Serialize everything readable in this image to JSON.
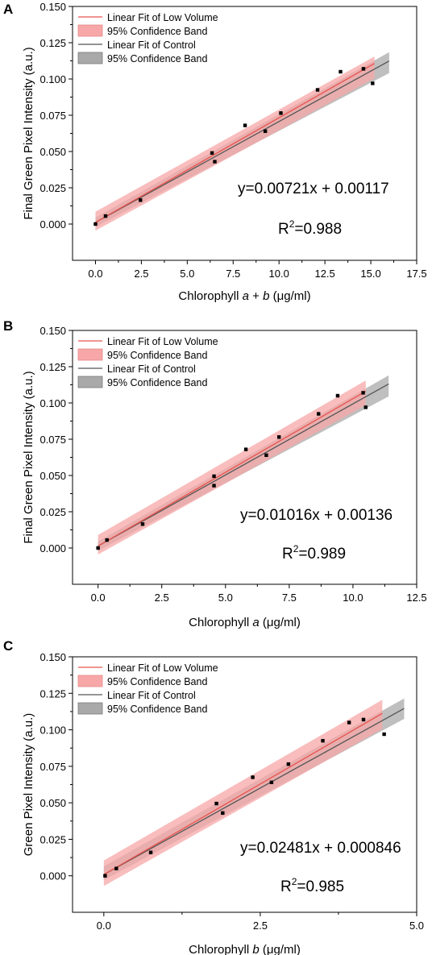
{
  "chart_data": [
    {
      "type": "scatter",
      "panel_label": "A",
      "xlabel_parts": [
        "Chlorophyll ",
        "a",
        " + ",
        "b",
        " (μg/ml)"
      ],
      "ylabel": "Final Green Pixel Intensity (a.u.)",
      "xlim": [
        -1.25,
        17.5
      ],
      "ylim": [
        -0.025,
        0.15
      ],
      "xticks": [
        "0.0",
        "2.5",
        "5.0",
        "7.5",
        "10.0",
        "12.5",
        "15.0",
        "17.5"
      ],
      "xtick_values": [
        0,
        2.5,
        5,
        7.5,
        10,
        12.5,
        15,
        17.5
      ],
      "yticks": [
        "0.000",
        "0.025",
        "0.050",
        "0.075",
        "0.100",
        "0.125",
        "0.150"
      ],
      "ytick_values": [
        0,
        0.025,
        0.05,
        0.075,
        0.1,
        0.125,
        0.15
      ],
      "legend": [
        "Linear Fit of Low Volume",
        "95% Confidence Band",
        "Linear Fit of Control",
        "95% Confidence Band"
      ],
      "equation": "y=0.00721x + 0.00117",
      "r2_prefix": "R",
      "r2_sup": "2",
      "r2_value": "=0.988",
      "points": [
        {
          "x": 0.0,
          "y": 0.0
        },
        {
          "x": 0.55,
          "y": 0.0055
        },
        {
          "x": 2.45,
          "y": 0.0165
        },
        {
          "x": 6.35,
          "y": 0.049
        },
        {
          "x": 6.5,
          "y": 0.043
        },
        {
          "x": 8.15,
          "y": 0.068
        },
        {
          "x": 9.25,
          "y": 0.064
        },
        {
          "x": 10.1,
          "y": 0.0765
        },
        {
          "x": 12.1,
          "y": 0.0925
        },
        {
          "x": 13.35,
          "y": 0.105
        },
        {
          "x": 14.6,
          "y": 0.107
        },
        {
          "x": 15.1,
          "y": 0.097
        }
      ],
      "low_volume_fit": {
        "slope": 0.00721,
        "intercept": 0.00117,
        "x_range": [
          0,
          15.2
        ]
      },
      "control_fit": {
        "slope": 0.00695,
        "intercept": 0.00117,
        "x_range": [
          0,
          16.0
        ]
      },
      "low_volume_band": {
        "x": [
          0,
          15.2
        ],
        "lower": [
          -0.0045,
          0.1005
        ],
        "upper": [
          0.0085,
          0.1155
        ]
      },
      "control_band": {
        "x": [
          0,
          16.0
        ],
        "lower": [
          -0.002,
          0.104
        ],
        "upper": [
          0.0045,
          0.1185
        ]
      }
    },
    {
      "type": "scatter",
      "panel_label": "B",
      "xlabel_parts": [
        "Chlorophyll ",
        "a",
        " (μg/ml)"
      ],
      "ylabel": "Final Green Pixel Intensity (a.u.)",
      "xlim": [
        -1.0,
        12.5
      ],
      "ylim": [
        -0.025,
        0.15
      ],
      "xticks": [
        "0.0",
        "2.5",
        "5.0",
        "7.5",
        "10.0",
        "12.5"
      ],
      "xtick_values": [
        0,
        2.5,
        5,
        7.5,
        10,
        12.5
      ],
      "yticks": [
        "0.000",
        "0.025",
        "0.050",
        "0.075",
        "0.100",
        "0.125",
        "0.150"
      ],
      "ytick_values": [
        0,
        0.025,
        0.05,
        0.075,
        0.1,
        0.125,
        0.15
      ],
      "legend": [
        "Linear Fit of Low Volume",
        "95% Confidence Band",
        "Linear Fit of Control",
        "95% Confidence Band"
      ],
      "equation": "y=0.01016x + 0.00136",
      "r2_prefix": "R",
      "r2_sup": "2",
      "r2_value": "=0.989",
      "points": [
        {
          "x": 0.0,
          "y": 0.0
        },
        {
          "x": 0.35,
          "y": 0.0055
        },
        {
          "x": 1.75,
          "y": 0.0165
        },
        {
          "x": 4.55,
          "y": 0.0495
        },
        {
          "x": 4.55,
          "y": 0.043
        },
        {
          "x": 5.8,
          "y": 0.068
        },
        {
          "x": 6.6,
          "y": 0.064
        },
        {
          "x": 7.1,
          "y": 0.0765
        },
        {
          "x": 8.65,
          "y": 0.0925
        },
        {
          "x": 9.4,
          "y": 0.105
        },
        {
          "x": 10.4,
          "y": 0.107
        },
        {
          "x": 10.5,
          "y": 0.097
        }
      ],
      "low_volume_fit": {
        "slope": 0.01016,
        "intercept": 0.00136,
        "x_range": [
          0,
          10.5
        ]
      },
      "control_fit": {
        "slope": 0.0098,
        "intercept": 0.00136,
        "x_range": [
          0,
          11.4
        ]
      },
      "low_volume_band": {
        "x": [
          0,
          10.5
        ],
        "lower": [
          -0.0045,
          0.0985
        ],
        "upper": [
          0.009,
          0.1155
        ]
      },
      "control_band": {
        "x": [
          0,
          11.4
        ],
        "lower": [
          -0.002,
          0.1045
        ],
        "upper": [
          0.0045,
          0.119
        ]
      }
    },
    {
      "type": "scatter",
      "panel_label": "C",
      "xlabel_parts": [
        "Chlorophyll ",
        "b",
        " (μg/ml)"
      ],
      "ylabel": "Green Pixel Intensity (a.u.)",
      "xlim": [
        -0.5,
        5.0
      ],
      "ylim": [
        -0.025,
        0.15
      ],
      "xticks": [
        "0.0",
        "2.5",
        "5.0"
      ],
      "xtick_values": [
        0,
        2.5,
        5
      ],
      "yticks": [
        "0.000",
        "0.025",
        "0.050",
        "0.075",
        "0.100",
        "0.125",
        "0.150"
      ],
      "ytick_values": [
        0,
        0.025,
        0.05,
        0.075,
        0.1,
        0.125,
        0.15
      ],
      "legend": [
        "Linear Fit of Low Volume",
        "95% Confidence Band",
        "Linear Fit of Control",
        "95% Confidence Band"
      ],
      "equation": "y=0.02481x + 0.000846",
      "r2_prefix": "R",
      "r2_sup": "2",
      "r2_value": "=0.985",
      "points": [
        {
          "x": 0.02,
          "y": 0.0
        },
        {
          "x": 0.2,
          "y": 0.005
        },
        {
          "x": 0.75,
          "y": 0.016
        },
        {
          "x": 1.8,
          "y": 0.0495
        },
        {
          "x": 1.9,
          "y": 0.043
        },
        {
          "x": 2.38,
          "y": 0.0675
        },
        {
          "x": 2.68,
          "y": 0.064
        },
        {
          "x": 2.95,
          "y": 0.0765
        },
        {
          "x": 3.5,
          "y": 0.0925
        },
        {
          "x": 3.92,
          "y": 0.105
        },
        {
          "x": 4.15,
          "y": 0.107
        },
        {
          "x": 4.48,
          "y": 0.097
        }
      ],
      "low_volume_fit": {
        "slope": 0.02481,
        "intercept": 0.000846,
        "x_range": [
          0,
          4.45
        ]
      },
      "control_fit": {
        "slope": 0.0237,
        "intercept": 0.000846,
        "x_range": [
          0,
          4.8
        ]
      },
      "low_volume_band": {
        "x": [
          0,
          4.45
        ],
        "lower": [
          -0.007,
          0.1005
        ],
        "upper": [
          0.0105,
          0.1205
        ]
      },
      "control_band": {
        "x": [
          0,
          4.8
        ],
        "lower": [
          -0.003,
          0.1075
        ],
        "upper": [
          0.0065,
          0.1215
        ]
      }
    }
  ],
  "colors": {
    "low_volume_line": "#e8534e",
    "low_volume_band": "#f7a7a7",
    "control_line": "#555555",
    "control_band": "#a9a9a9",
    "points": "#000000",
    "axis": "#000000"
  }
}
